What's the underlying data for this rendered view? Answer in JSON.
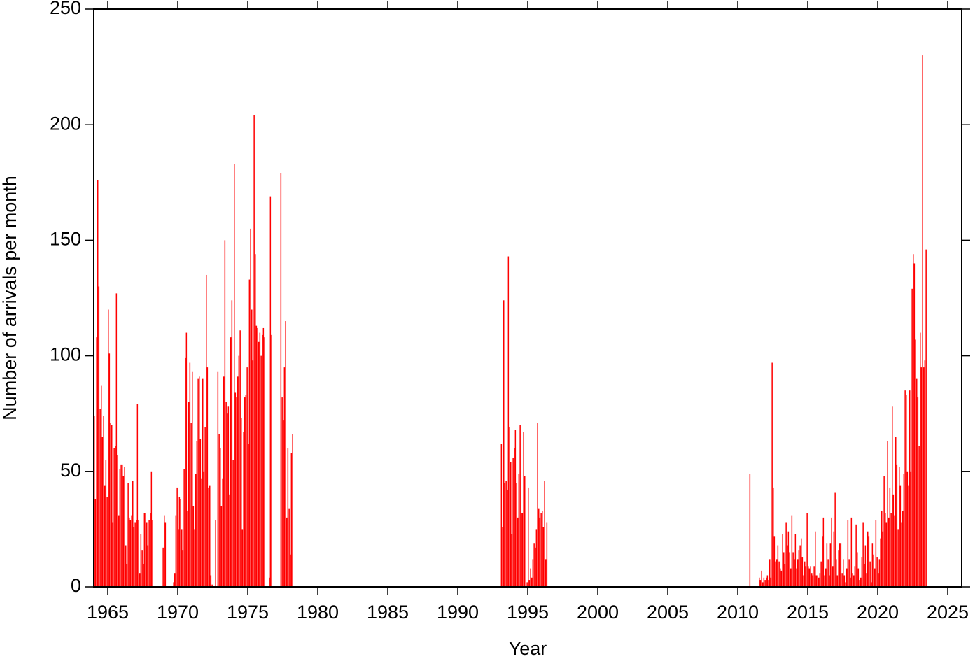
{
  "chart_data": {
    "type": "bar",
    "xlabel": "Year",
    "ylabel": "Number of arrivals per month",
    "color": "#ff0000",
    "xlim": [
      1964,
      2026
    ],
    "ylim": [
      0,
      250
    ],
    "xticks": [
      1965,
      1970,
      1975,
      1980,
      1985,
      1990,
      1995,
      2000,
      2005,
      2010,
      2015,
      2020,
      2025
    ],
    "yticks": [
      0,
      50,
      100,
      150,
      200,
      250
    ],
    "x": [
      1964,
      1964.08,
      1964.17,
      1964.25,
      1964.33,
      1964.42,
      1964.5,
      1964.58,
      1964.67,
      1964.75,
      1964.83,
      1964.92,
      1965,
      1965.08,
      1965.17,
      1965.25,
      1965.33,
      1965.42,
      1965.5,
      1965.58,
      1965.67,
      1965.75,
      1965.83,
      1965.92,
      1966,
      1966.08,
      1966.17,
      1966.25,
      1966.33,
      1966.42,
      1966.5,
      1966.58,
      1966.67,
      1966.75,
      1966.83,
      1966.92,
      1967,
      1967.08,
      1967.17,
      1967.25,
      1967.33,
      1967.42,
      1967.5,
      1967.58,
      1967.67,
      1967.75,
      1967.83,
      1967.92,
      1968,
      1968.08,
      1968.17,
      1968.25,
      1968.33,
      1968.42,
      1968.5,
      1968.58,
      1968.67,
      1968.75,
      1968.83,
      1968.92,
      1969,
      1969.08,
      1969.17,
      1969.25,
      1969.33,
      1969.42,
      1969.5,
      1969.58,
      1969.67,
      1969.75,
      1969.83,
      1969.92,
      1970,
      1970.08,
      1970.17,
      1970.25,
      1970.33,
      1970.42,
      1970.5,
      1970.58,
      1970.67,
      1970.75,
      1970.83,
      1970.92,
      1971,
      1971.08,
      1971.17,
      1971.25,
      1971.33,
      1971.42,
      1971.5,
      1971.58,
      1971.67,
      1971.75,
      1971.83,
      1971.92,
      1972,
      1972.08,
      1972.17,
      1972.25,
      1972.33,
      1972.42,
      1972.5,
      1972.58,
      1972.67,
      1972.75,
      1972.83,
      1972.92,
      1973,
      1973.08,
      1973.17,
      1973.25,
      1973.33,
      1973.42,
      1973.5,
      1973.58,
      1973.67,
      1973.75,
      1973.83,
      1973.92,
      1974,
      1974.08,
      1974.17,
      1974.25,
      1974.33,
      1974.42,
      1974.5,
      1974.58,
      1974.67,
      1974.75,
      1974.83,
      1974.92,
      1975,
      1975.08,
      1975.17,
      1975.25,
      1975.33,
      1975.42,
      1975.5,
      1975.58,
      1975.67,
      1975.75,
      1975.83,
      1975.92,
      1976,
      1976.08,
      1976.17,
      1976.25,
      1976.33,
      1976.42,
      1976.5,
      1976.58,
      1976.67,
      1976.75,
      1976.83,
      1976.92,
      1977,
      1977.08,
      1977.17,
      1977.25,
      1977.33,
      1977.42,
      1977.5,
      1977.58,
      1977.67,
      1977.75,
      1977.83,
      1977.92,
      1978,
      1978.08,
      1978.17,
      1993.08,
      1993.17,
      1993.25,
      1993.33,
      1993.42,
      1993.5,
      1993.58,
      1993.67,
      1993.75,
      1993.83,
      1993.92,
      1994,
      1994.08,
      1994.17,
      1994.25,
      1994.33,
      1994.42,
      1994.5,
      1994.58,
      1994.67,
      1994.75,
      1994.83,
      1994.92,
      1995,
      1995.08,
      1995.17,
      1995.25,
      1995.33,
      1995.42,
      1995.5,
      1995.58,
      1995.67,
      1995.75,
      1995.83,
      1995.92,
      1996,
      1996.08,
      1996.17,
      1996.25,
      1996.33,
      2010.83,
      2011.5,
      2011.58,
      2011.67,
      2011.75,
      2011.83,
      2011.92,
      2012,
      2012.08,
      2012.17,
      2012.25,
      2012.33,
      2012.42,
      2012.5,
      2012.58,
      2012.67,
      2012.75,
      2012.83,
      2012.92,
      2013,
      2013.08,
      2013.17,
      2013.25,
      2013.33,
      2013.42,
      2013.5,
      2013.58,
      2013.67,
      2013.75,
      2013.83,
      2013.92,
      2014,
      2014.08,
      2014.17,
      2014.25,
      2014.33,
      2014.42,
      2014.5,
      2014.58,
      2014.67,
      2014.75,
      2014.83,
      2014.92,
      2015,
      2015.08,
      2015.17,
      2015.25,
      2015.33,
      2015.42,
      2015.5,
      2015.58,
      2015.67,
      2015.75,
      2015.83,
      2015.92,
      2016,
      2016.08,
      2016.17,
      2016.25,
      2016.33,
      2016.42,
      2016.5,
      2016.58,
      2016.67,
      2016.75,
      2016.83,
      2016.92,
      2017,
      2017.08,
      2017.17,
      2017.25,
      2017.33,
      2017.42,
      2017.5,
      2017.58,
      2017.67,
      2017.75,
      2017.83,
      2017.92,
      2018,
      2018.08,
      2018.17,
      2018.25,
      2018.33,
      2018.42,
      2018.5,
      2018.58,
      2018.67,
      2018.75,
      2018.83,
      2018.92,
      2019,
      2019.08,
      2019.17,
      2019.25,
      2019.33,
      2019.42,
      2019.5,
      2019.58,
      2019.67,
      2019.75,
      2019.83,
      2019.92,
      2020,
      2020.08,
      2020.17,
      2020.25,
      2020.33,
      2020.42,
      2020.5,
      2020.58,
      2020.67,
      2020.75,
      2020.83,
      2020.92,
      2021,
      2021.08,
      2021.17,
      2021.25,
      2021.33,
      2021.42,
      2021.5,
      2021.58,
      2021.67,
      2021.75,
      2021.83,
      2021.92,
      2022,
      2022.08,
      2022.17,
      2022.25,
      2022.33,
      2022.42,
      2022.5,
      2022.58,
      2022.67,
      2022.75,
      2022.83,
      2022.92,
      2023,
      2023.08,
      2023.17,
      2023.25,
      2023.33,
      2023.42
    ],
    "values": [
      74,
      38,
      108,
      176,
      130,
      77,
      87,
      65,
      74,
      44,
      55,
      39,
      120,
      101,
      71,
      70,
      28,
      60,
      61,
      127,
      57,
      31,
      51,
      53,
      53,
      48,
      52,
      18,
      10,
      45,
      30,
      29,
      31,
      46,
      26,
      28,
      29,
      79,
      29,
      6,
      23,
      16,
      10,
      32,
      32,
      28,
      18,
      29,
      32,
      50,
      29,
      0,
      0,
      0,
      0,
      0,
      0,
      0,
      0,
      17,
      31,
      28,
      0,
      0,
      0,
      0,
      0,
      0,
      2,
      6,
      31,
      43,
      25,
      39,
      38,
      25,
      16,
      51,
      99,
      110,
      33,
      80,
      97,
      71,
      93,
      35,
      25,
      49,
      63,
      90,
      91,
      64,
      47,
      90,
      50,
      69,
      135,
      95,
      43,
      44,
      5,
      1,
      0,
      0,
      29,
      0,
      93,
      66,
      60,
      35,
      47,
      91,
      150,
      80,
      75,
      78,
      40,
      108,
      124,
      55,
      183,
      84,
      82,
      91,
      100,
      111,
      73,
      25,
      67,
      82,
      83,
      95,
      62,
      133,
      155,
      120,
      98,
      204,
      144,
      113,
      112,
      106,
      110,
      100,
      109,
      112,
      108,
      0,
      0,
      0,
      4,
      169,
      109,
      0,
      0,
      0,
      0,
      0,
      0,
      0,
      179,
      82,
      72,
      95,
      115,
      30,
      60,
      34,
      14,
      58,
      66,
      62,
      26,
      124,
      45,
      46,
      42,
      143,
      69,
      54,
      23,
      56,
      60,
      68,
      45,
      30,
      49,
      70,
      32,
      32,
      67,
      48,
      0,
      2,
      43,
      3,
      8,
      4,
      12,
      19,
      17,
      25,
      71,
      34,
      30,
      32,
      33,
      26,
      46,
      12,
      28,
      49,
      4,
      3,
      7,
      2,
      4,
      3,
      4,
      5,
      3,
      12,
      4,
      97,
      43,
      22,
      11,
      12,
      18,
      11,
      8,
      7,
      23,
      15,
      10,
      28,
      18,
      24,
      15,
      8,
      31,
      15,
      12,
      23,
      8,
      12,
      16,
      18,
      21,
      13,
      5,
      11,
      9,
      32,
      9,
      8,
      9,
      6,
      5,
      9,
      24,
      5,
      5,
      4,
      6,
      11,
      22,
      30,
      5,
      8,
      19,
      12,
      5,
      19,
      30,
      9,
      24,
      41,
      12,
      5,
      16,
      19,
      19,
      6,
      12,
      5,
      2,
      8,
      29,
      12,
      4,
      30,
      6,
      5,
      9,
      27,
      15,
      8,
      3,
      4,
      13,
      28,
      10,
      18,
      6,
      24,
      22,
      11,
      2,
      19,
      14,
      8,
      29,
      13,
      6,
      12,
      21,
      33,
      24,
      48,
      32,
      28,
      63,
      30,
      43,
      32,
      78,
      40,
      31,
      65,
      53,
      25,
      52,
      44,
      28,
      33,
      49,
      85,
      83,
      50,
      44,
      85,
      50,
      129,
      144,
      140,
      107,
      90,
      82,
      61,
      110,
      95,
      230,
      95,
      98,
      146
    ]
  }
}
